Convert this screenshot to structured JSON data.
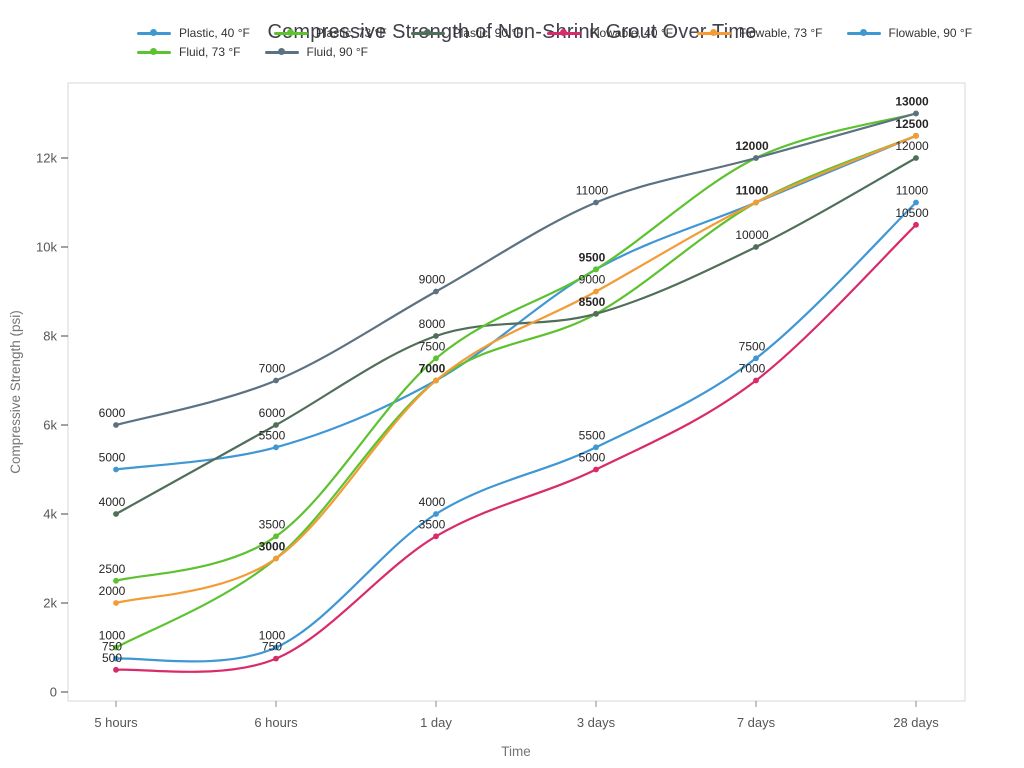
{
  "title": "Compressive Strength of Non-Shrink Grout Over Time",
  "chart_data": {
    "type": "line",
    "title": "Compressive Strength of Non-Shrink Grout Over Time",
    "xlabel": "Time",
    "ylabel": "Compressive Strength (psi)",
    "categories": [
      "5 hours",
      "6 hours",
      "1 day",
      "3 days",
      "7 days",
      "28 days"
    ],
    "y_ticks": [
      "0",
      "2k",
      "4k",
      "6k",
      "8k",
      "10k",
      "12k"
    ],
    "y_tick_values": [
      0,
      2000,
      4000,
      6000,
      8000,
      10000,
      12000
    ],
    "ylim": [
      0,
      13700
    ],
    "grid": false,
    "legend_position": "top",
    "line_style": "spline",
    "markers": true,
    "point_labels": true,
    "series": [
      {
        "name": "Plastic, 40 °F",
        "color": "#3f97d4",
        "values": [
          5000,
          5500,
          7000,
          9500,
          11000,
          12500
        ]
      },
      {
        "name": "Plastic, 73 °F",
        "color": "#5dc22f",
        "values": [
          1000,
          3000,
          7000,
          8500,
          11000,
          12500
        ]
      },
      {
        "name": "Plastic, 90 °F",
        "color": "#4f6f5b",
        "values": [
          4000,
          6000,
          8000,
          8500,
          10000,
          12000
        ]
      },
      {
        "name": "Flowable, 40 °F",
        "color": "#d92a6a",
        "values": [
          500,
          750,
          3500,
          5000,
          7000,
          10500
        ]
      },
      {
        "name": "Flowable, 73 °F",
        "color": "#f39b35",
        "values": [
          2000,
          3000,
          7000,
          9000,
          11000,
          12500
        ]
      },
      {
        "name": "Flowable, 90 °F",
        "color": "#3f97d4",
        "values": [
          750,
          1000,
          4000,
          5500,
          7500,
          11000
        ]
      },
      {
        "name": "Fluid, 73 °F",
        "color": "#5dc22f",
        "values": [
          2500,
          3500,
          7500,
          9500,
          12000,
          13000
        ]
      },
      {
        "name": "Fluid, 90 °F",
        "color": "#5c7282",
        "values": [
          6000,
          7000,
          9000,
          11000,
          12000,
          13000
        ]
      }
    ],
    "legend_rows": [
      [
        0,
        1,
        2,
        3,
        4,
        5
      ],
      [
        6,
        7
      ]
    ]
  },
  "colors": {
    "title_text": "#404049",
    "tick_text": "#565656",
    "axis_title_text": "#757575",
    "point_label_text": "#262626",
    "axis_line": "#d7d7d7",
    "y_tick_mark": "#444444",
    "x_tick_mark": "#8a8a8a"
  }
}
